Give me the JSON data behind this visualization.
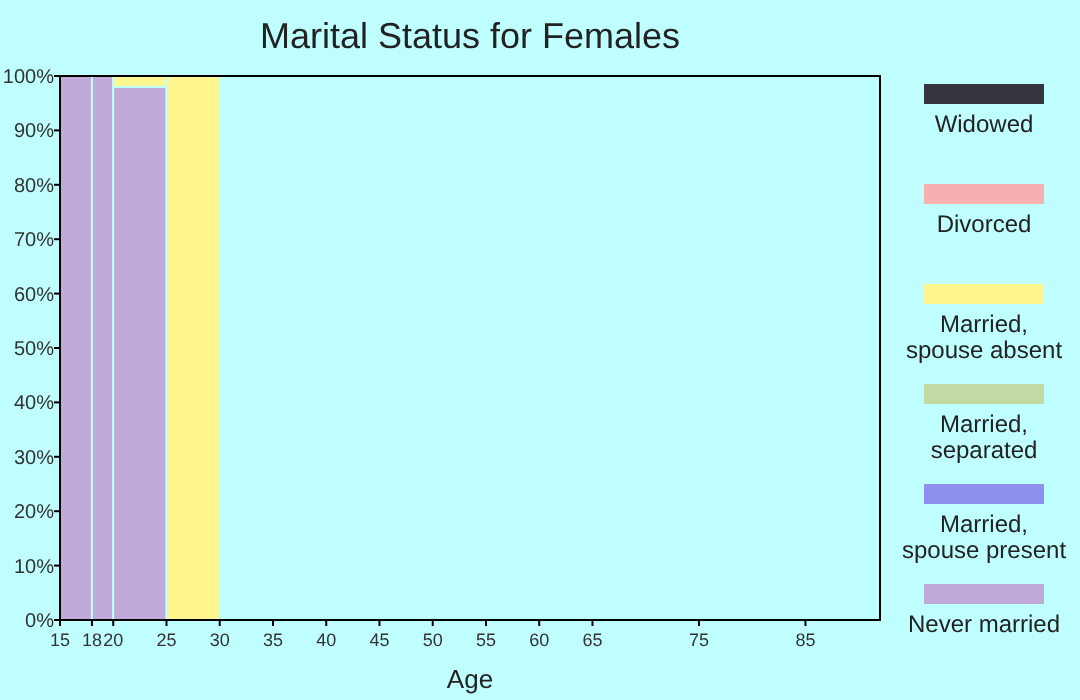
{
  "chart_data": {
    "type": "bar",
    "title": "Marital Status for Females",
    "xlabel": "Age",
    "stacked": true,
    "legend": "right",
    "grid": false,
    "x": [
      16.5,
      19,
      22.5,
      27.5
    ],
    "xlim": [
      15,
      92
    ],
    "xticks": [
      15,
      18,
      20,
      25,
      30,
      35,
      40,
      45,
      50,
      55,
      60,
      65,
      75,
      85
    ],
    "ylim": [
      0,
      100
    ],
    "yticks": [
      {
        "value": 0,
        "label": "0%"
      },
      {
        "value": 10,
        "label": "10%"
      },
      {
        "value": 20,
        "label": "20%"
      },
      {
        "value": 30,
        "label": "30%"
      },
      {
        "value": 40,
        "label": "40%"
      },
      {
        "value": 50,
        "label": "50%"
      },
      {
        "value": 60,
        "label": "60%"
      },
      {
        "value": 70,
        "label": "70%"
      },
      {
        "value": 80,
        "label": "80%"
      },
      {
        "value": 90,
        "label": "90%"
      },
      {
        "value": 100,
        "label": "100%"
      }
    ],
    "series": [
      {
        "name": "Never married",
        "color": "#bfaad9",
        "values": [
          100,
          100,
          98,
          0
        ]
      },
      {
        "name": "Married, spouse present",
        "color": "#8f8ff0",
        "values": [
          0,
          0,
          0,
          0
        ]
      },
      {
        "name": "Married, separated",
        "color": "#c2d9a3",
        "values": [
          0,
          0,
          0,
          0
        ]
      },
      {
        "name": "Married, spouse absent",
        "color": "#fff68f",
        "values": [
          0,
          0,
          2,
          100
        ]
      },
      {
        "name": "Divorced",
        "color": "#f7b0b0",
        "values": [
          0,
          0,
          0,
          0
        ]
      },
      {
        "name": "Widowed",
        "color": "#35363d",
        "values": [
          0,
          0,
          0,
          0
        ]
      }
    ]
  }
}
